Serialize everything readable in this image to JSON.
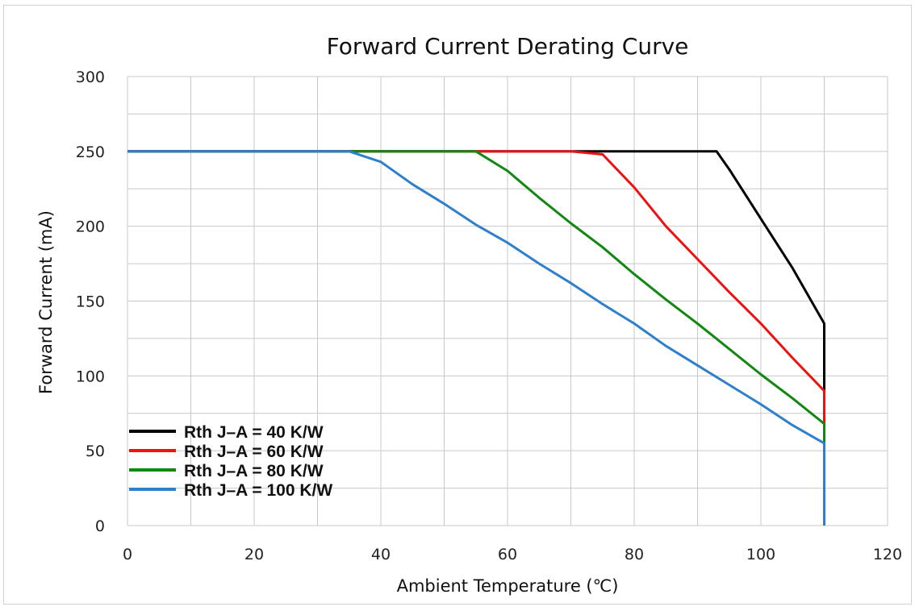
{
  "chart_data": {
    "type": "line",
    "title": "Forward Current Derating Curve",
    "xlabel": "Ambient Temperature (℃)",
    "ylabel": "Forward Current (mA)",
    "xlim": [
      0,
      120
    ],
    "ylim": [
      0,
      300
    ],
    "xticks": [
      "0",
      "20",
      "40",
      "60",
      "80",
      "100",
      "120"
    ],
    "yticks": [
      "0",
      "50",
      "100",
      "150",
      "200",
      "250",
      "300"
    ],
    "grid": true,
    "legend_position": "bottom-left",
    "series": [
      {
        "name": "Rth J–A = 40 K/W",
        "color": "#000000",
        "points": [
          [
            0,
            250
          ],
          [
            93,
            250
          ],
          [
            95,
            238
          ],
          [
            100,
            205
          ],
          [
            105,
            172
          ],
          [
            110,
            135
          ],
          [
            110,
            0
          ]
        ]
      },
      {
        "name": "Rth J–A = 60 K/W",
        "color": "#ee1111",
        "points": [
          [
            0,
            250
          ],
          [
            70,
            250
          ],
          [
            75,
            248
          ],
          [
            80,
            226
          ],
          [
            85,
            200
          ],
          [
            90,
            178
          ],
          [
            95,
            156
          ],
          [
            100,
            135
          ],
          [
            105,
            112
          ],
          [
            110,
            90
          ],
          [
            110,
            0
          ]
        ]
      },
      {
        "name": "Rth J–A = 80 K/W",
        "color": "#118811",
        "points": [
          [
            0,
            250
          ],
          [
            55,
            250
          ],
          [
            60,
            237
          ],
          [
            65,
            219
          ],
          [
            70,
            202
          ],
          [
            75,
            186
          ],
          [
            80,
            168
          ],
          [
            85,
            151
          ],
          [
            90,
            135
          ],
          [
            95,
            118
          ],
          [
            100,
            101
          ],
          [
            105,
            85
          ],
          [
            110,
            68
          ],
          [
            110,
            0
          ]
        ]
      },
      {
        "name": "Rth J–A = 100 K/W",
        "color": "#2e7fcc",
        "points": [
          [
            0,
            250
          ],
          [
            35,
            250
          ],
          [
            40,
            243
          ],
          [
            45,
            228
          ],
          [
            50,
            215
          ],
          [
            55,
            201
          ],
          [
            60,
            189
          ],
          [
            65,
            175
          ],
          [
            70,
            162
          ],
          [
            75,
            148
          ],
          [
            80,
            135
          ],
          [
            85,
            120
          ],
          [
            90,
            107
          ],
          [
            95,
            94
          ],
          [
            100,
            81
          ],
          [
            105,
            67
          ],
          [
            110,
            55
          ],
          [
            110,
            0
          ]
        ]
      }
    ]
  }
}
